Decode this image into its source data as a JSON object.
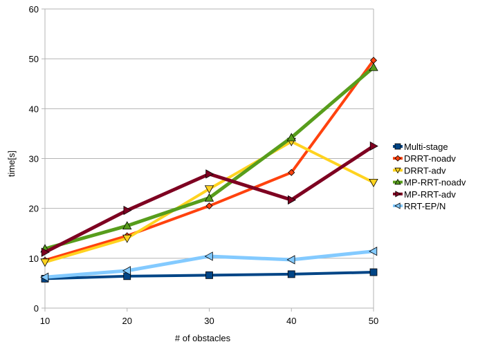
{
  "chart_data": {
    "type": "line",
    "title": "",
    "xlabel": "# of obstacles",
    "ylabel": "time[s]",
    "x": [
      10,
      20,
      30,
      40,
      50
    ],
    "xlim": [
      10,
      50
    ],
    "ylim": [
      0,
      60
    ],
    "xticks": [
      "10",
      "20",
      "30",
      "40",
      "50"
    ],
    "yticks": [
      "0",
      "10",
      "20",
      "30",
      "40",
      "50",
      "60"
    ],
    "grid": true,
    "legend_position": "right",
    "series": [
      {
        "name": "Multi-stage",
        "color": "#004586",
        "marker": "square",
        "values": [
          5.9,
          6.4,
          6.6,
          6.8,
          7.2
        ]
      },
      {
        "name": "DRRT-noadv",
        "color": "#ff420e",
        "marker": "diamond",
        "values": [
          9.6,
          14.5,
          20.5,
          27.2,
          49.7
        ]
      },
      {
        "name": "DRRT-adv",
        "color": "#ffd320",
        "marker": "triangle-down",
        "values": [
          9.2,
          14.0,
          23.9,
          33.4,
          25.2
        ]
      },
      {
        "name": "MP-RRT-noadv",
        "color": "#579d1c",
        "marker": "triangle-up",
        "values": [
          11.9,
          16.5,
          22.1,
          34.2,
          48.3
        ]
      },
      {
        "name": "MP-RRT-adv",
        "color": "#7e0021",
        "marker": "triangle-right",
        "values": [
          11.2,
          19.6,
          26.9,
          21.7,
          32.5
        ]
      },
      {
        "name": "RRT-EP/N",
        "color": "#83caff",
        "marker": "triangle-left",
        "values": [
          6.2,
          7.5,
          10.4,
          9.7,
          11.4
        ]
      }
    ]
  }
}
